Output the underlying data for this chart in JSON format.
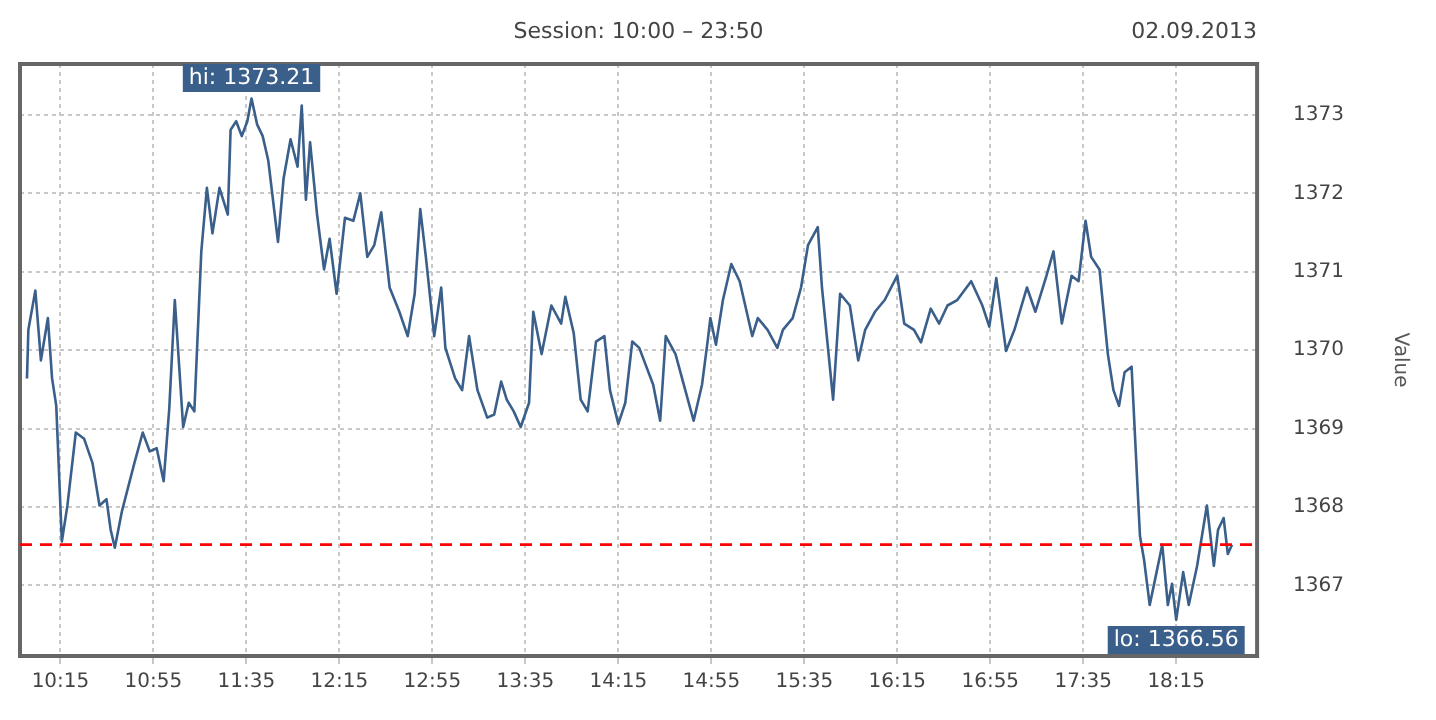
{
  "chart_data": {
    "type": "line",
    "title": "Session: 10:00 – 23:50",
    "ylabel": "Value",
    "annotations": [
      "02.09.2013",
      {
        "text": "hi: 1373.21",
        "x": 11.62,
        "y": 1373.21
      },
      {
        "text": "lo: 1366.56",
        "x": 18.25,
        "y": 1366.56
      }
    ],
    "xlim": [
      9.96,
      18.83
    ],
    "xticks": [
      {
        "value": 10.25,
        "label": "10:15"
      },
      {
        "value": 10.9167,
        "label": "10:55"
      },
      {
        "value": 11.5833,
        "label": "11:35"
      },
      {
        "value": 12.25,
        "label": "12:15"
      },
      {
        "value": 12.9167,
        "label": "12:55"
      },
      {
        "value": 13.5833,
        "label": "13:35"
      },
      {
        "value": 14.25,
        "label": "14:15"
      },
      {
        "value": 14.9167,
        "label": "14:55"
      },
      {
        "value": 15.5833,
        "label": "15:35"
      },
      {
        "value": 16.25,
        "label": "16:15"
      },
      {
        "value": 16.9167,
        "label": "16:55"
      },
      {
        "value": 17.5833,
        "label": "17:35"
      },
      {
        "value": 18.25,
        "label": "18:15"
      }
    ],
    "ylim": [
      1366.1,
      1373.65
    ],
    "yticks": [
      1367,
      1368,
      1369,
      1370,
      1371,
      1372,
      1373
    ],
    "grid": true,
    "marker": "none",
    "line_style": "solid",
    "ref_lines": [
      {
        "axis": "y",
        "value": 1367.52,
        "color": "#ff0000",
        "line_style": "dashed"
      }
    ],
    "series": [
      {
        "color": "#3a5f8a",
        "x": [
          10.01,
          10.02,
          10.07,
          10.11,
          10.16,
          10.19,
          10.22,
          10.26,
          10.3,
          10.36,
          10.42,
          10.48,
          10.53,
          10.58,
          10.61,
          10.64,
          10.69,
          10.78,
          10.84,
          10.89,
          10.94,
          10.99,
          11.03,
          11.07,
          11.13,
          11.17,
          11.21,
          11.26,
          11.3,
          11.34,
          11.39,
          11.45,
          11.47,
          11.51,
          11.55,
          11.59,
          11.62,
          11.66,
          11.7,
          11.74,
          11.81,
          11.85,
          11.9,
          11.95,
          11.98,
          12.01,
          12.04,
          12.09,
          12.14,
          12.18,
          12.23,
          12.29,
          12.35,
          12.4,
          12.45,
          12.5,
          12.55,
          12.61,
          12.68,
          12.74,
          12.79,
          12.83,
          12.87,
          12.93,
          12.98,
          13.01,
          13.08,
          13.13,
          13.18,
          13.24,
          13.31,
          13.36,
          13.41,
          13.45,
          13.5,
          13.55,
          13.61,
          13.64,
          13.7,
          13.77,
          13.84,
          13.87,
          13.93,
          13.98,
          14.03,
          14.09,
          14.15,
          14.19,
          14.25,
          14.3,
          14.35,
          14.4,
          14.5,
          14.55,
          14.59,
          14.66,
          14.73,
          14.79,
          14.85,
          14.89,
          14.91,
          14.95,
          15,
          15.06,
          15.12,
          15.16,
          15.21,
          15.25,
          15.32,
          15.39,
          15.43,
          15.5,
          15.56,
          15.61,
          15.68,
          15.71,
          15.79,
          15.84,
          15.91,
          15.97,
          16.02,
          16.09,
          16.16,
          16.25,
          16.3,
          16.37,
          16.42,
          16.49,
          16.55,
          16.61,
          16.68,
          16.78,
          16.86,
          16.91,
          16.96,
          17.03,
          17.09,
          17.18,
          17.24,
          17.32,
          17.37,
          17.43,
          17.5,
          17.55,
          17.6,
          17.64,
          17.7,
          17.76,
          17.8,
          17.84,
          17.88,
          17.93,
          17.99,
          18.02,
          18.06,
          18.1,
          18.15,
          18.19,
          18.22,
          18.25,
          18.3,
          18.34,
          18.4,
          18.47,
          18.52,
          18.55,
          18.59,
          18.62,
          18.65
        ],
        "values": [
          1369.64,
          1370.26,
          1370.76,
          1369.87,
          1370.41,
          1369.64,
          1369.29,
          1367.56,
          1368.02,
          1368.95,
          1368.87,
          1368.56,
          1368.02,
          1368.1,
          1367.71,
          1367.48,
          1367.94,
          1368.56,
          1368.95,
          1368.71,
          1368.75,
          1368.33,
          1369.25,
          1370.64,
          1369.02,
          1369.33,
          1369.22,
          1371.26,
          1372.07,
          1371.49,
          1372.07,
          1371.73,
          1372.81,
          1372.92,
          1372.73,
          1372.92,
          1373.21,
          1372.88,
          1372.73,
          1372.42,
          1371.38,
          1372.19,
          1372.69,
          1372.34,
          1373.12,
          1371.92,
          1372.65,
          1371.73,
          1371.03,
          1371.42,
          1370.72,
          1371.69,
          1371.65,
          1372.0,
          1371.19,
          1371.34,
          1371.76,
          1370.8,
          1370.49,
          1370.18,
          1370.72,
          1371.8,
          1371.19,
          1370.18,
          1370.8,
          1370.03,
          1369.64,
          1369.49,
          1370.18,
          1369.49,
          1369.14,
          1369.18,
          1369.6,
          1369.37,
          1369.22,
          1369.02,
          1369.33,
          1370.49,
          1369.95,
          1370.57,
          1370.34,
          1370.68,
          1370.22,
          1369.37,
          1369.22,
          1370.11,
          1370.18,
          1369.49,
          1369.06,
          1369.33,
          1370.11,
          1370.03,
          1369.56,
          1369.1,
          1370.18,
          1369.95,
          1369.49,
          1369.1,
          1369.56,
          1370.11,
          1370.41,
          1370.07,
          1370.64,
          1371.1,
          1370.88,
          1370.57,
          1370.18,
          1370.41,
          1370.26,
          1370.03,
          1370.26,
          1370.41,
          1370.8,
          1371.34,
          1371.57,
          1370.8,
          1369.37,
          1370.72,
          1370.57,
          1369.87,
          1370.26,
          1370.49,
          1370.64,
          1370.95,
          1370.34,
          1370.26,
          1370.1,
          1370.53,
          1370.34,
          1370.57,
          1370.64,
          1370.88,
          1370.57,
          1370.3,
          1370.92,
          1369.99,
          1370.26,
          1370.8,
          1370.49,
          1370.95,
          1371.26,
          1370.34,
          1370.95,
          1370.88,
          1371.65,
          1371.19,
          1371.03,
          1369.95,
          1369.49,
          1369.29,
          1369.72,
          1369.79,
          1367.63,
          1367.32,
          1366.75,
          1367.09,
          1367.52,
          1366.75,
          1367.02,
          1366.56,
          1367.17,
          1366.75,
          1367.25,
          1368.02,
          1367.25,
          1367.71,
          1367.86,
          1367.4,
          1367.52
        ]
      }
    ]
  }
}
